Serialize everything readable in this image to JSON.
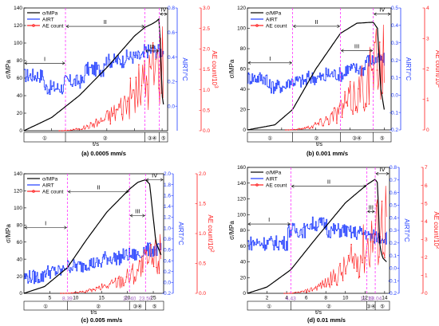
{
  "colors": {
    "stress": "#000000",
    "airt": "#1f3cff",
    "ae": "#ff1a1a",
    "marker": "#ff33ff",
    "label_accent": "#a05cc0"
  },
  "chart_data": [
    {
      "type": "line",
      "caption": "(a) 0.0005 mm/s",
      "xlabel": "t/s",
      "ylabel_left": "σ/MPa",
      "ylabel_r1": "AIRT/°C",
      "ylabel_r2": "AE count/10",
      "ylabel_r2_exp": "3",
      "xlim": [
        0,
        520
      ],
      "ylim_left": [
        0,
        140
      ],
      "ylim_r1": [
        -0.2,
        0.8
      ],
      "ylim_r2": [
        0,
        3
      ],
      "xticks": [
        "100",
        "200",
        "300",
        "400",
        "500"
      ],
      "yticks_left": [
        "0",
        "20",
        "40",
        "60",
        "80",
        "100",
        "120",
        "140"
      ],
      "yticks_r1": [
        "0.0",
        "0.2",
        "0.4",
        "0.6",
        "0.8"
      ],
      "yticks_r2": [
        "0.0",
        "0.5",
        "1.0",
        "1.5",
        "2.0",
        "2.5",
        "3.0"
      ],
      "legend": [
        "σ/MPa",
        "AIRT",
        "AE count"
      ],
      "markers": [
        150.3,
        437.99,
        490.2
      ],
      "marker_labels": [
        "150.30",
        "437.99",
        "490.20"
      ],
      "phases": [
        "I",
        "II",
        "III",
        "IV"
      ],
      "phase_bar": [
        "①",
        "②",
        "③④",
        "⑤"
      ],
      "stress": {
        "x": [
          0,
          100,
          200,
          300,
          400,
          437.99,
          465,
          480,
          490.2,
          500,
          505
        ],
        "y": [
          0,
          15,
          40,
          72,
          108,
          118,
          122,
          125,
          128,
          40,
          30
        ]
      },
      "airt_base": [
        0.25,
        0.15,
        0.2,
        0.3,
        0.37,
        0.4,
        0.45
      ],
      "ae_peak": 2.6
    },
    {
      "type": "line",
      "caption": "(b) 0.001 mm/s",
      "xlabel": "t/s",
      "ylabel_left": "σ/MPa",
      "ylabel_r1": "AIRT/°C",
      "ylabel_r2": "AE count/10",
      "ylabel_r2_exp": "2",
      "xlim": [
        0,
        210
      ],
      "ylim_left": [
        0,
        120
      ],
      "ylim_r1": [
        -0.2,
        0.5
      ],
      "ylim_r2": [
        0,
        4
      ],
      "xticks": [
        "50",
        "100",
        "150",
        "200"
      ],
      "yticks_left": [
        "0",
        "20",
        "40",
        "60",
        "80",
        "100",
        "120"
      ],
      "yticks_r1": [
        "-0.2",
        "-0.1",
        "0.0",
        "0.1",
        "0.2",
        "0.3",
        "0.4",
        "0.5"
      ],
      "yticks_r2": [
        "0",
        "1",
        "2",
        "3",
        "4"
      ],
      "legend": [
        "σ/MPa",
        "AIRT",
        "AE count"
      ],
      "markers": [
        65.9,
        135.9,
        183.9
      ],
      "marker_labels": [
        "65.90",
        "135.90",
        "183.90"
      ],
      "phases": [
        "I",
        "II",
        "III",
        "IV"
      ],
      "phase_bar": [
        "①",
        "②",
        "③④",
        "⑤"
      ],
      "stress": {
        "x": [
          0,
          40,
          65.9,
          100,
          135.9,
          160,
          183.9,
          190,
          195,
          200
        ],
        "y": [
          0,
          5,
          20,
          60,
          95,
          105,
          106,
          100,
          40,
          20
        ]
      },
      "airt_base": [
        0.1,
        0.05,
        0.08,
        0.1,
        0.12,
        0.15,
        0.2
      ],
      "ae_peak": 3.5
    },
    {
      "type": "line",
      "caption": "(c) 0.005 mm/s",
      "xlabel": "t/s",
      "ylabel_left": "σ/MPa",
      "ylabel_r1": "AIRT/°C",
      "ylabel_r2": "AE count/10",
      "ylabel_r2_exp": "2",
      "xlim": [
        0,
        27
      ],
      "ylim_left": [
        0,
        140
      ],
      "ylim_r1": [
        -0.2,
        2.0
      ],
      "ylim_r2": [
        0,
        2.0
      ],
      "xticks": [
        "5",
        "10",
        "15",
        "20",
        "25"
      ],
      "yticks_left": [
        "0",
        "20",
        "40",
        "60",
        "80",
        "100",
        "120",
        "140"
      ],
      "yticks_r1": [
        "-0.2",
        "0.0",
        "0.2",
        "0.4",
        "0.6",
        "0.8",
        "1.0",
        "1.2",
        "1.4",
        "1.6",
        "1.8",
        "2.0"
      ],
      "yticks_r2": [
        "0.0",
        "0.5",
        "1.0",
        "1.5",
        "2.0"
      ],
      "legend": [
        "σ/MPa",
        "AIRT",
        "AE count"
      ],
      "markers": [
        8.39,
        20.4,
        23.5
      ],
      "marker_labels": [
        "8.39",
        "20.40",
        "23.50"
      ],
      "phases": [
        "I",
        "II",
        "III",
        "IV"
      ],
      "phase_bar": [
        "①",
        "②",
        "③④",
        "⑤"
      ],
      "stress": {
        "x": [
          0,
          4,
          8.39,
          12,
          16,
          20.4,
          22,
          23.5,
          24.3,
          25.5,
          26.5
        ],
        "y": [
          0,
          8,
          30,
          62,
          95,
          122,
          130,
          133,
          128,
          60,
          45
        ]
      },
      "airt_base": [
        0.1,
        0.2,
        0.3,
        0.35,
        0.45,
        0.5,
        0.6
      ],
      "ae_peak": 1.0
    },
    {
      "type": "line",
      "caption": "(d) 0.01 mm/s",
      "xlabel": "t/s",
      "ylabel_left": "σ/MPa",
      "ylabel_r1": "AIRT/°C",
      "ylabel_r2": "AE count/10",
      "ylabel_r2_exp": "2",
      "xlim": [
        0,
        14.5
      ],
      "ylim_left": [
        0,
        160
      ],
      "ylim_r1": [
        -0.2,
        0.8
      ],
      "ylim_r2": [
        0,
        7
      ],
      "xticks": [
        "2",
        "4",
        "6",
        "8",
        "10",
        "12",
        "14"
      ],
      "yticks_left": [
        "0",
        "20",
        "40",
        "60",
        "80",
        "100",
        "120",
        "140",
        "160"
      ],
      "yticks_r1": [
        "-0.2",
        "-0.1",
        "0.0",
        "0.1",
        "0.2",
        "0.3",
        "0.4",
        "0.5",
        "0.6",
        "0.7",
        "0.8"
      ],
      "yticks_r2": [
        "0",
        "1",
        "2",
        "3",
        "4",
        "5",
        "6",
        "7"
      ],
      "legend": [
        "σ/MPa",
        "AIRT",
        "AE count"
      ],
      "markers": [
        4.43,
        12.19,
        13.04
      ],
      "marker_labels": [
        "4.43",
        "12.19",
        "13.04"
      ],
      "phases": [
        "I",
        "II",
        "III",
        "IV"
      ],
      "phase_bar": [
        "①",
        "②",
        "③④",
        "⑤"
      ],
      "stress": {
        "x": [
          0,
          2,
          4.43,
          7,
          10,
          12.19,
          13.04,
          13.3,
          13.5,
          13.8,
          14.2
        ],
        "y": [
          0,
          8,
          30,
          70,
          115,
          138,
          145,
          140,
          60,
          45,
          40
        ]
      },
      "airt_base": [
        0.2,
        0.2,
        0.3,
        0.35,
        0.3,
        0.28,
        0.25
      ],
      "ae_peak": 6.0
    }
  ]
}
